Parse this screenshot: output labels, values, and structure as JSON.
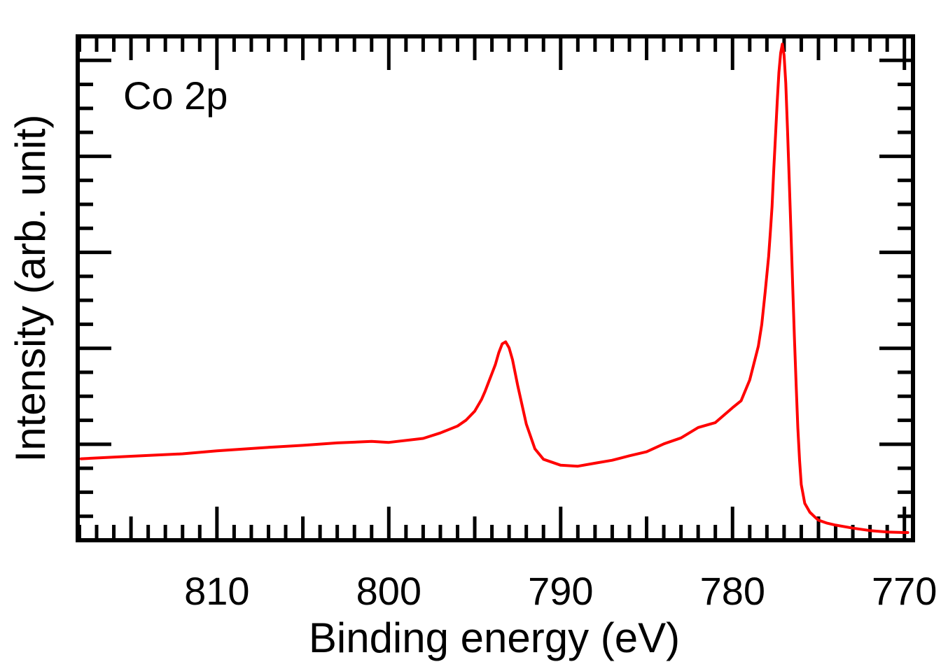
{
  "chart_data": {
    "type": "line",
    "annotation": "Co 2p",
    "xlabel": "Binding energy (eV)",
    "ylabel": "Intensity (arb. unit)",
    "xlim": [
      818.1,
      769.5
    ],
    "ylim": [
      0,
      100
    ],
    "x_reversed": true,
    "x_tick_labels": [
      "810",
      "800",
      "790",
      "780",
      "770"
    ],
    "x_ticks": [
      810,
      800,
      790,
      780,
      770
    ],
    "y_tick_labels_shown": false,
    "grid": false,
    "legend": "none",
    "series": [
      {
        "color": "#ff0000",
        "x": [
          817.9,
          815,
          812,
          810,
          807,
          805,
          803,
          801,
          800,
          798,
          797,
          796,
          795.5,
          795,
          794.6,
          794.4,
          794.2,
          794.0,
          793.8,
          793.6,
          793.4,
          793.2,
          793.0,
          792.8,
          792.5,
          792.0,
          791.5,
          791,
          790,
          789,
          788,
          787,
          786,
          785,
          784,
          783,
          782,
          781,
          780,
          779.5,
          779,
          778.5,
          778.3,
          778.1,
          777.9,
          777.8,
          777.7,
          777.6,
          777.5,
          777.4,
          777.3,
          777.2,
          777.1,
          777.0,
          776.9,
          776.8,
          776.7,
          776.6,
          776.5,
          776.4,
          776.3,
          776.2,
          776.1,
          776.0,
          775.8,
          775.5,
          775.2,
          775.0,
          774.5,
          774,
          773,
          772,
          771,
          770,
          769.8
        ],
        "y": [
          15.6,
          16.1,
          16.6,
          17.2,
          17.9,
          18.3,
          18.8,
          19.1,
          18.9,
          19.7,
          20.8,
          22.2,
          23.4,
          25.2,
          27.6,
          29.2,
          31.0,
          32.8,
          34.6,
          37.0,
          38.8,
          39.2,
          38.0,
          35.6,
          30.4,
          22.6,
          17.6,
          15.5,
          14.3,
          14.1,
          14.7,
          15.3,
          16.2,
          17.0,
          18.6,
          19.8,
          21.9,
          22.9,
          25.9,
          27.3,
          31.5,
          38.3,
          42.7,
          49.3,
          56.4,
          61.4,
          66.5,
          74.1,
          80.7,
          87.7,
          93.6,
          97.5,
          99.3,
          97.0,
          91.4,
          81.9,
          71.6,
          61.4,
          50.4,
          40.2,
          30.6,
          21.9,
          15.3,
          10.4,
          6.6,
          4.8,
          3.8,
          3.2,
          2.6,
          2.2,
          1.6,
          1.1,
          0.8,
          0.7,
          0.7
        ]
      }
    ]
  }
}
